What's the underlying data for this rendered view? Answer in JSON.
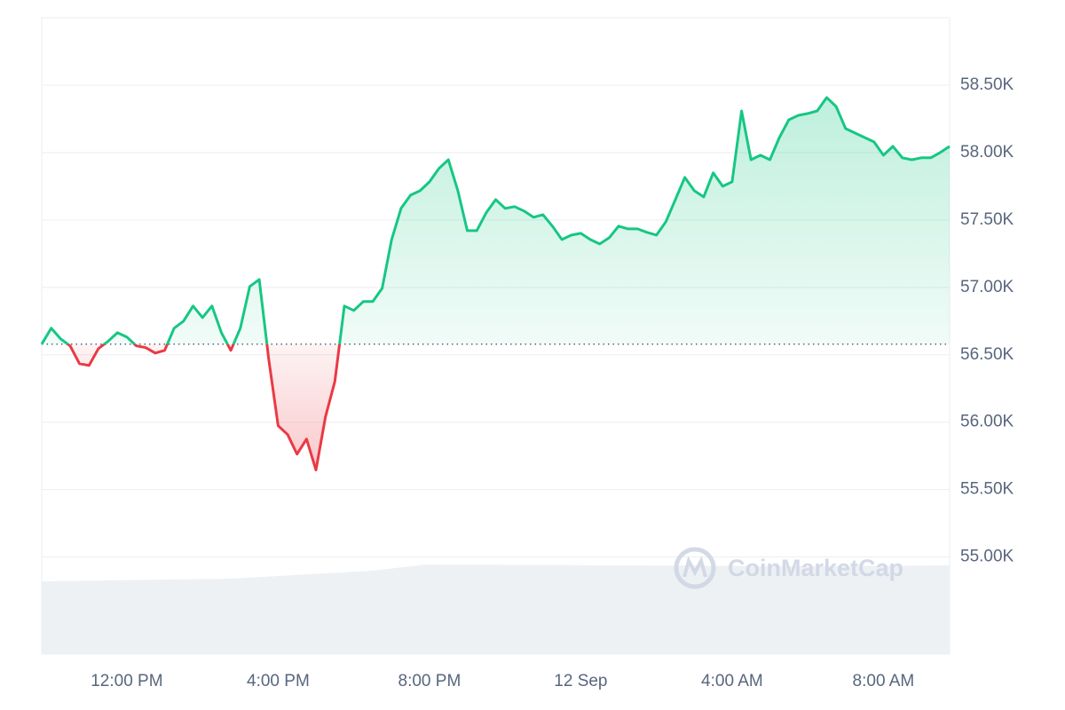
{
  "chart_data": {
    "type": "line",
    "watermark": "CoinMarketCap",
    "x": [
      -2.25,
      -2,
      -1.75,
      -1.5,
      -1.25,
      -1,
      -0.75,
      -0.5,
      -0.25,
      0,
      0.25,
      0.5,
      0.75,
      1,
      1.25,
      1.5,
      1.75,
      2,
      2.25,
      2.5,
      2.75,
      3,
      3.25,
      3.5,
      3.75,
      4,
      4.25,
      4.5,
      4.75,
      5,
      5.25,
      5.5,
      5.75,
      6,
      6.25,
      6.5,
      6.75,
      7,
      7.25,
      7.5,
      7.75,
      8,
      8.25,
      8.5,
      8.75,
      9,
      9.25,
      9.5,
      9.75,
      10,
      10.25,
      10.5,
      10.75,
      11,
      11.25,
      11.5,
      11.75,
      12,
      12.25,
      12.5,
      12.75,
      13,
      13.25,
      13.5,
      13.75,
      14,
      14.25,
      14.5,
      14.75,
      15,
      15.25,
      15.5,
      15.75,
      16,
      16.25,
      16.5,
      16.75,
      17,
      17.25,
      17.5,
      17.75,
      18,
      18.25,
      18.5,
      18.75,
      19,
      19.25,
      19.5,
      19.75,
      20,
      20.25,
      20.5,
      20.75,
      21,
      21.25,
      21.5,
      21.75
    ],
    "values": [
      56579,
      56697,
      56618,
      56566,
      56434,
      56421,
      56546,
      56599,
      56664,
      56632,
      56566,
      56553,
      56513,
      56533,
      56697,
      56750,
      56862,
      56776,
      56862,
      56664,
      56533,
      56697,
      57007,
      57059,
      56467,
      55974,
      55908,
      55763,
      55875,
      55645,
      56039,
      56303,
      56862,
      56829,
      56895,
      56895,
      56993,
      57355,
      57586,
      57684,
      57717,
      57783,
      57882,
      57947,
      57717,
      57421,
      57421,
      57553,
      57651,
      57586,
      57599,
      57566,
      57520,
      57539,
      57454,
      57355,
      57388,
      57401,
      57355,
      57322,
      57368,
      57454,
      57434,
      57434,
      57408,
      57388,
      57487,
      57651,
      57816,
      57717,
      57671,
      57849,
      57750,
      57783,
      58309,
      57947,
      57980,
      57947,
      58112,
      58243,
      58276,
      58290,
      58309,
      58408,
      58342,
      58178,
      58145,
      58112,
      58079,
      57980,
      58046,
      57961,
      57947,
      57961,
      57961,
      58000,
      58046
    ],
    "baseline": 56579,
    "up_color": "#16c784",
    "down_color": "#ea3943",
    "xlim": [
      -2.25,
      21.75
    ],
    "xticks": [
      {
        "value": 0,
        "label": "12:00 PM"
      },
      {
        "value": 4,
        "label": "4:00 PM"
      },
      {
        "value": 8,
        "label": "8:00 PM"
      },
      {
        "value": 12,
        "label": "12 Sep"
      },
      {
        "value": 16,
        "label": "4:00 AM"
      },
      {
        "value": 20,
        "label": "8:00 AM"
      }
    ],
    "ylim": [
      54280,
      59000
    ],
    "yticks": [
      {
        "value": 55000,
        "label": "55.00K"
      },
      {
        "value": 55500,
        "label": "55.50K"
      },
      {
        "value": 56000,
        "label": "56.00K"
      },
      {
        "value": 56500,
        "label": "56.50K"
      },
      {
        "value": 57000,
        "label": "57.00K"
      },
      {
        "value": 57500,
        "label": "57.50K"
      },
      {
        "value": 58000,
        "label": "58.00K"
      },
      {
        "value": 58500,
        "label": "58.50K"
      }
    ],
    "grid": true
  }
}
